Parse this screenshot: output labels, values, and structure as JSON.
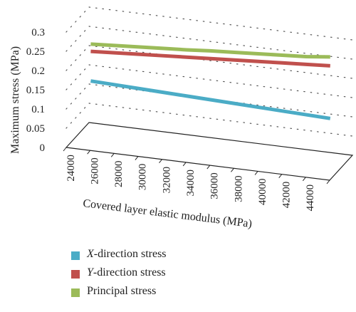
{
  "chart_data": {
    "type": "line",
    "x": [
      24000,
      26000,
      28000,
      30000,
      32000,
      34000,
      36000,
      38000,
      40000,
      42000,
      44000
    ],
    "xlabel": "Covered layer elastic modulus (MPa)",
    "ylabel": "Maximum stress (MPa)",
    "yticks": [
      "0",
      "0.05",
      "0.1",
      "0.15",
      "0.2",
      "0.25",
      "0.3"
    ],
    "ylim": [
      0,
      0.3
    ],
    "grid": true,
    "legend_position": "bottom-left",
    "series": [
      {
        "name_prefix": "X",
        "name_suffix": "-direction stress",
        "color": "#4bacc6",
        "values": [
          0.141,
          0.139,
          0.137,
          0.135,
          0.133,
          0.131,
          0.129,
          0.127,
          0.125,
          0.123,
          0.121
        ]
      },
      {
        "name_prefix": "Y",
        "name_suffix": "-direction stress",
        "color": "#c0504d",
        "values": [
          0.218,
          0.222,
          0.226,
          0.23,
          0.234,
          0.238,
          0.242,
          0.246,
          0.25,
          0.254,
          0.258
        ]
      },
      {
        "name_prefix": "",
        "name_suffix": "Principal stress",
        "color": "#9bbb59",
        "values": [
          0.237,
          0.241,
          0.245,
          0.249,
          0.253,
          0.258,
          0.262,
          0.266,
          0.27,
          0.274,
          0.281
        ]
      }
    ]
  }
}
